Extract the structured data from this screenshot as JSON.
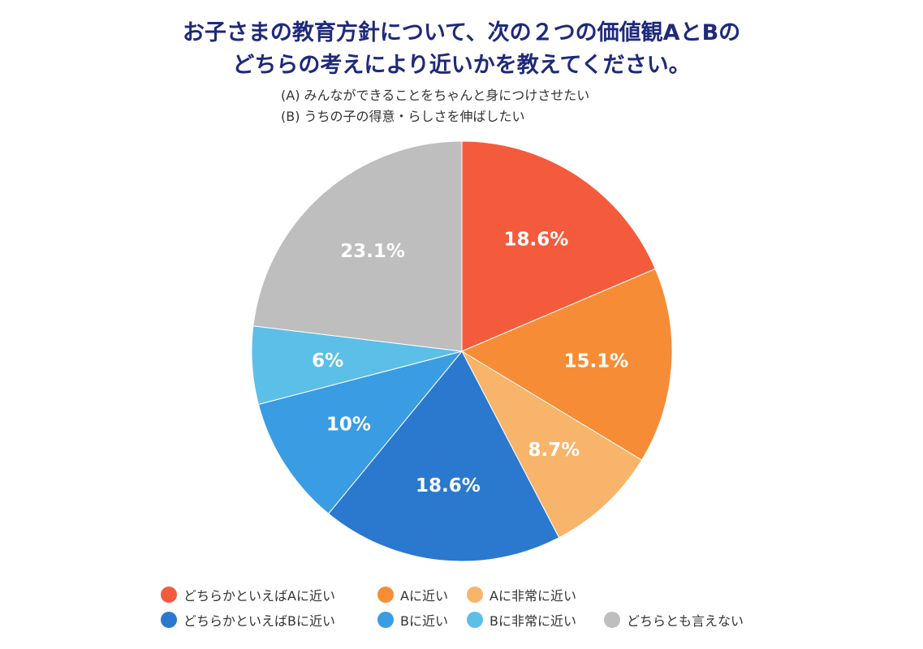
{
  "title_line1": "お子さまの教育方針について、次の２つの価値観AとBの",
  "title_line2": "どちらの考えにより近いかを教えてください。",
  "subtitle_a": "(A) みんなができることをちゃんと身につけさせたい",
  "subtitle_b": "(B) うちの子の得意・らしさを伸ばしたい",
  "chart_data": {
    "type": "pie",
    "start": "top",
    "direction": "clockwise",
    "legend_position": "bottom",
    "slices": [
      {
        "name": "どちらかといえばAに近い",
        "value": 18.6,
        "label": "18.6%",
        "color": "#F45B3C"
      },
      {
        "name": "Aに近い",
        "value": 15.1,
        "label": "15.1%",
        "color": "#F68D36"
      },
      {
        "name": "Aに非常に近い",
        "value": 8.7,
        "label": "8.7%",
        "color": "#F8B46A"
      },
      {
        "name": "どちらかといえばBに近い",
        "value": 18.6,
        "label": "18.6%",
        "color": "#2B78CF"
      },
      {
        "name": "Bに近い",
        "value": 10,
        "label": "10%",
        "color": "#3A9CE2"
      },
      {
        "name": "Bに非常に近い",
        "value": 6,
        "label": "6%",
        "color": "#5CBFE8"
      },
      {
        "name": "どちらとも言えない",
        "value": 23.1,
        "label": "23.1%",
        "color": "#BEBEBE"
      }
    ]
  }
}
